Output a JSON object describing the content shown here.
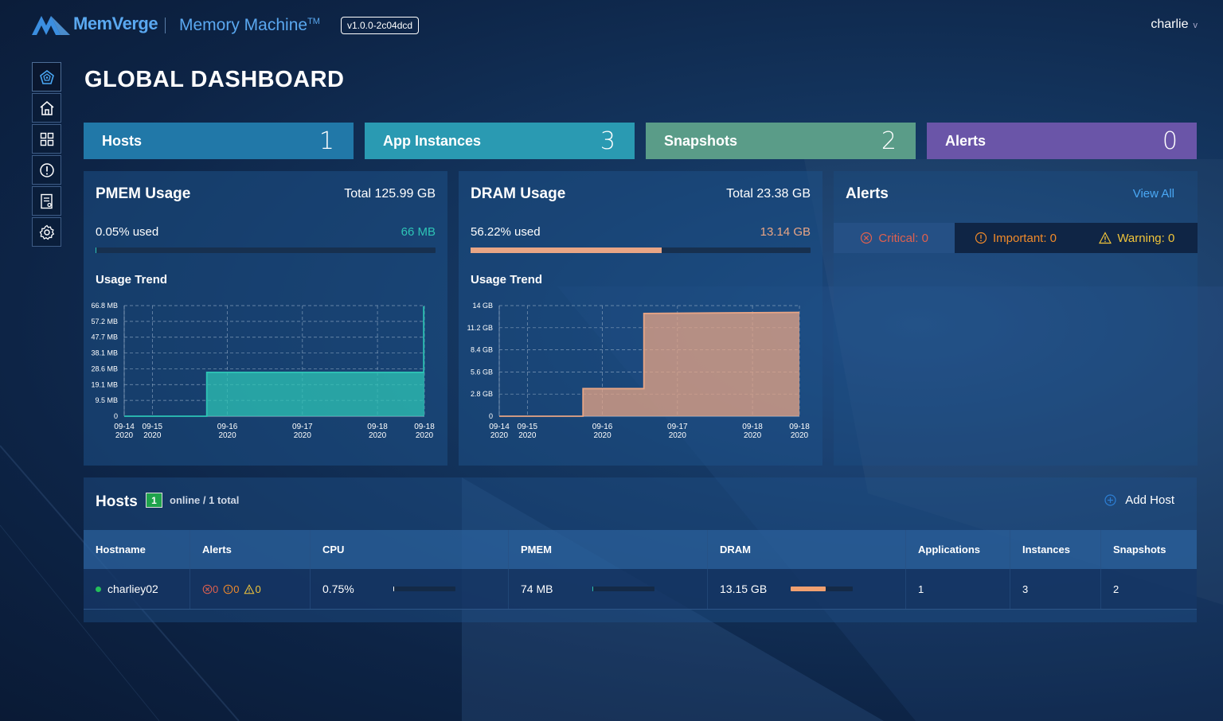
{
  "header": {
    "brand": "MemVerge",
    "product": "Memory Machine",
    "product_tm": "TM",
    "version": "v1.0.0-2c04dcd",
    "user": "charlie",
    "user_chevron": "v"
  },
  "sidebar": {
    "items": [
      {
        "icon": "dashboard-icon",
        "active": true
      },
      {
        "icon": "home-icon"
      },
      {
        "icon": "grid-icon"
      },
      {
        "icon": "alert-icon"
      },
      {
        "icon": "report-icon"
      },
      {
        "icon": "gear-icon"
      }
    ]
  },
  "page_title": "GLOBAL DASHBOARD",
  "summary": [
    {
      "label": "Hosts",
      "value": "1",
      "color": "#2178a8"
    },
    {
      "label": "App Instances",
      "value": "3",
      "color": "#2a9ab2"
    },
    {
      "label": "Snapshots",
      "value": "2",
      "color": "#5a9c88"
    },
    {
      "label": "Alerts",
      "value": "0",
      "color": "#6a55a8"
    }
  ],
  "pmem": {
    "title": "PMEM Usage",
    "total": "Total 125.99 GB",
    "used_pct_label": "0.05% used",
    "used_value": "66 MB",
    "used_fraction": 0.0005,
    "trend_label": "Usage Trend"
  },
  "dram": {
    "title": "DRAM Usage",
    "total": "Total 23.38 GB",
    "used_pct_label": "56.22% used",
    "used_value": "13.14 GB",
    "used_fraction": 0.5622,
    "trend_label": "Usage Trend"
  },
  "chart_data": [
    {
      "type": "area",
      "title": "",
      "color": "#2ec4b6",
      "y_ticks": [
        "0",
        "9.5 MB",
        "19.1 MB",
        "28.6 MB",
        "38.1 MB",
        "47.7 MB",
        "57.2 MB",
        "66.8 MB"
      ],
      "ylim": [
        0,
        66.8
      ],
      "x_ticks": [
        [
          "09-14",
          "2020"
        ],
        [
          "09-15",
          "2020"
        ],
        [
          "09-16",
          "2020"
        ],
        [
          "09-17",
          "2020"
        ],
        [
          "09-18",
          "2020"
        ],
        [
          "09-18",
          "2020"
        ]
      ],
      "x_positions": [
        0,
        0.0937,
        0.3437,
        0.5937,
        0.8437,
        1.0
      ],
      "series": [
        {
          "x": [
            0,
            0.275,
            0.275,
            0.998,
            0.998,
            1.0
          ],
          "y": [
            0,
            0,
            26.5,
            26.5,
            66,
            66
          ]
        }
      ]
    },
    {
      "type": "area",
      "title": "",
      "color": "#e8a585",
      "y_ticks": [
        "0",
        "2.8 GB",
        "5.6 GB",
        "8.4 GB",
        "11.2 GB",
        "14 GB"
      ],
      "ylim": [
        0,
        14
      ],
      "x_ticks": [
        [
          "09-14",
          "2020"
        ],
        [
          "09-15",
          "2020"
        ],
        [
          "09-16",
          "2020"
        ],
        [
          "09-17",
          "2020"
        ],
        [
          "09-18",
          "2020"
        ],
        [
          "09-18",
          "2020"
        ]
      ],
      "x_positions": [
        0,
        0.0937,
        0.3437,
        0.5937,
        0.8437,
        1.0
      ],
      "series": [
        {
          "x": [
            0,
            0.279,
            0.279,
            0.482,
            0.482,
            1.0
          ],
          "y": [
            0,
            0,
            3.5,
            3.5,
            13.0,
            13.14
          ]
        }
      ]
    }
  ],
  "alerts_panel": {
    "title": "Alerts",
    "view_all": "View All",
    "critical": "Critical: 0",
    "important": "Important: 0",
    "warning": "Warning: 0",
    "critical_color": "#e0604e",
    "important_color": "#f08a2a",
    "warning_color": "#f0c43a"
  },
  "hosts": {
    "title": "Hosts",
    "online_count": "1",
    "online_text": "online / 1 total",
    "add_host": "Add Host",
    "columns": [
      "Hostname",
      "Alerts",
      "CPU",
      "PMEM",
      "DRAM",
      "Applications",
      "Instances",
      "Snapshots"
    ],
    "rows": [
      {
        "hostname": "charliey02",
        "alert_critical": "0",
        "alert_important": "0",
        "alert_warning": "0",
        "cpu": "0.75%",
        "cpu_fraction": 0.0075,
        "pmem": "74 MB",
        "pmem_fraction": 0.0006,
        "dram": "13.15 GB",
        "dram_fraction": 0.56,
        "applications": "1",
        "instances": "3",
        "snapshots": "2"
      }
    ]
  }
}
